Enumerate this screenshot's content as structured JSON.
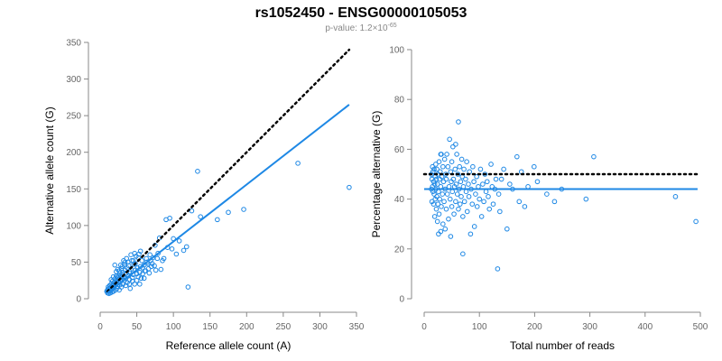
{
  "header": {
    "title": "rs1052450 - ENSG00000105053",
    "pvalue_prefix": "p-value: 1.2×10",
    "pvalue_exponent": "-65"
  },
  "colors": {
    "points": "#1e88e5",
    "fit_line": "#1e88e5",
    "reference_line": "#000000",
    "axis": "#888888",
    "tick_text": "#666666"
  },
  "chart_data": [
    {
      "type": "scatter",
      "title": "",
      "xlabel": "Reference allele count (A)",
      "ylabel": "Alternative allele count (G)",
      "xlim": [
        0,
        350
      ],
      "ylim": [
        0,
        350
      ],
      "xticks": [
        0,
        50,
        100,
        150,
        200,
        250,
        300,
        350
      ],
      "yticks": [
        0,
        50,
        100,
        150,
        200,
        250,
        300,
        350
      ],
      "grid": false,
      "reference_line": {
        "style": "dotted",
        "x": [
          10,
          340
        ],
        "y": [
          10,
          340
        ]
      },
      "fit_line": {
        "style": "solid",
        "x": [
          10,
          340
        ],
        "y": [
          8,
          265
        ]
      },
      "points": [
        [
          340,
          152
        ],
        [
          270,
          185
        ],
        [
          196,
          122
        ],
        [
          175,
          118
        ],
        [
          160,
          108
        ],
        [
          137,
          112
        ],
        [
          133,
          174
        ],
        [
          125,
          120
        ],
        [
          120,
          16
        ],
        [
          118,
          71
        ],
        [
          114,
          66
        ],
        [
          108,
          79
        ],
        [
          104,
          61
        ],
        [
          95,
          110
        ],
        [
          90,
          108
        ],
        [
          85,
          52
        ],
        [
          81,
          83
        ],
        [
          78,
          55
        ],
        [
          75,
          73
        ],
        [
          72,
          56
        ],
        [
          70,
          44
        ],
        [
          68,
          60
        ],
        [
          66,
          41
        ],
        [
          64,
          50
        ],
        [
          62,
          38
        ],
        [
          60,
          46
        ],
        [
          58,
          34
        ],
        [
          57,
          52
        ],
        [
          56,
          28
        ],
        [
          55,
          44
        ],
        [
          54,
          36
        ],
        [
          53,
          61
        ],
        [
          52,
          30
        ],
        [
          51,
          42
        ],
        [
          50,
          25
        ],
        [
          49,
          58
        ],
        [
          48,
          39
        ],
        [
          47,
          20
        ],
        [
          46,
          47
        ],
        [
          45,
          33
        ],
        [
          44,
          29
        ],
        [
          43,
          52
        ],
        [
          42,
          40
        ],
        [
          41,
          14
        ],
        [
          40,
          37
        ],
        [
          40,
          26
        ],
        [
          39,
          45
        ],
        [
          38,
          31
        ],
        [
          37,
          22
        ],
        [
          37,
          42
        ],
        [
          36,
          35
        ],
        [
          35,
          28
        ],
        [
          35,
          18
        ],
        [
          34,
          39
        ],
        [
          33,
          25
        ],
        [
          33,
          47
        ],
        [
          32,
          30
        ],
        [
          31,
          20
        ],
        [
          31,
          36
        ],
        [
          30,
          26
        ],
        [
          30,
          33
        ],
        [
          29,
          16
        ],
        [
          29,
          41
        ],
        [
          28,
          24
        ],
        [
          28,
          30
        ],
        [
          27,
          19
        ],
        [
          27,
          35
        ],
        [
          26,
          27
        ],
        [
          26,
          12
        ],
        [
          25,
          32
        ],
        [
          25,
          22
        ],
        [
          24,
          17
        ],
        [
          24,
          29
        ],
        [
          23,
          25
        ],
        [
          23,
          14
        ],
        [
          22,
          20
        ],
        [
          22,
          31
        ],
        [
          21,
          23
        ],
        [
          21,
          12
        ],
        [
          20,
          18
        ],
        [
          20,
          27
        ],
        [
          19,
          15
        ],
        [
          19,
          22
        ],
        [
          18,
          19
        ],
        [
          18,
          10
        ],
        [
          17,
          24
        ],
        [
          17,
          14
        ],
        [
          16,
          17
        ],
        [
          16,
          9
        ],
        [
          15,
          20
        ],
        [
          15,
          12
        ],
        [
          14,
          15
        ],
        [
          14,
          8
        ],
        [
          13,
          18
        ],
        [
          13,
          11
        ],
        [
          12,
          14
        ],
        [
          12,
          7
        ],
        [
          11,
          10
        ],
        [
          11,
          16
        ],
        [
          10,
          12
        ],
        [
          10,
          8
        ],
        [
          9,
          10
        ],
        [
          20,
          46
        ],
        [
          24,
          40
        ],
        [
          26,
          38
        ],
        [
          30,
          44
        ],
        [
          34,
          50
        ],
        [
          36,
          55
        ],
        [
          42,
          60
        ],
        [
          45,
          52
        ],
        [
          48,
          48
        ],
        [
          52,
          56
        ],
        [
          58,
          42
        ],
        [
          61,
          38
        ],
        [
          63,
          55
        ],
        [
          65,
          48
        ],
        [
          67,
          35
        ],
        [
          69,
          52
        ],
        [
          71,
          48
        ],
        [
          74,
          45
        ],
        [
          76,
          39
        ],
        [
          79,
          62
        ],
        [
          83,
          40
        ],
        [
          87,
          55
        ],
        [
          92,
          70
        ],
        [
          98,
          68
        ],
        [
          100,
          82
        ],
        [
          55,
          65
        ],
        [
          47,
          62
        ],
        [
          38,
          50
        ],
        [
          32,
          52
        ],
        [
          28,
          46
        ],
        [
          22,
          37
        ],
        [
          18,
          30
        ],
        [
          15,
          26
        ],
        [
          40,
          20
        ],
        [
          44,
          24
        ],
        [
          50,
          34
        ],
        [
          54,
          20
        ],
        [
          60,
          28
        ]
      ]
    },
    {
      "type": "scatter",
      "title": "",
      "xlabel": "Total number of reads",
      "ylabel": "Percentage alternative (G)",
      "xlim": [
        0,
        500
      ],
      "ylim": [
        0,
        100
      ],
      "xticks": [
        0,
        100,
        200,
        300,
        400,
        500
      ],
      "yticks": [
        0,
        20,
        40,
        60,
        80,
        100
      ],
      "grid": false,
      "reference_line": {
        "style": "dotted",
        "x": [
          0,
          495
        ],
        "y": [
          50,
          50
        ]
      },
      "fit_line": {
        "style": "solid",
        "x": [
          0,
          495
        ],
        "y": [
          44,
          44
        ]
      },
      "points": [
        [
          492,
          31
        ],
        [
          455,
          41
        ],
        [
          307,
          57
        ],
        [
          293,
          40
        ],
        [
          249,
          44
        ],
        [
          236,
          39
        ],
        [
          222,
          42
        ],
        [
          205,
          47
        ],
        [
          199,
          53
        ],
        [
          188,
          45
        ],
        [
          182,
          37
        ],
        [
          176,
          51
        ],
        [
          172,
          39
        ],
        [
          168,
          57
        ],
        [
          160,
          44
        ],
        [
          155,
          46
        ],
        [
          150,
          28
        ],
        [
          144,
          52
        ],
        [
          140,
          48
        ],
        [
          137,
          35
        ],
        [
          135,
          42
        ],
        [
          133,
          12
        ],
        [
          130,
          48
        ],
        [
          128,
          44
        ],
        [
          125,
          38
        ],
        [
          123,
          45
        ],
        [
          121,
          54
        ],
        [
          118,
          36
        ],
        [
          116,
          41
        ],
        [
          114,
          47
        ],
        [
          112,
          43
        ],
        [
          110,
          50
        ],
        [
          108,
          39
        ],
        [
          106,
          46
        ],
        [
          104,
          33
        ],
        [
          102,
          52
        ],
        [
          100,
          40
        ],
        [
          98,
          45
        ],
        [
          96,
          37
        ],
        [
          95,
          49
        ],
        [
          93,
          42
        ],
        [
          91,
          29
        ],
        [
          90,
          47
        ],
        [
          88,
          53
        ],
        [
          87,
          38
        ],
        [
          85,
          44
        ],
        [
          84,
          26
        ],
        [
          82,
          51
        ],
        [
          81,
          41
        ],
        [
          80,
          46
        ],
        [
          78,
          35
        ],
        [
          77,
          55
        ],
        [
          76,
          43
        ],
        [
          75,
          48
        ],
        [
          73,
          39
        ],
        [
          72,
          52
        ],
        [
          71,
          45
        ],
        [
          70,
          33
        ],
        [
          69,
          49
        ],
        [
          68,
          56
        ],
        [
          67,
          41
        ],
        [
          66,
          47
        ],
        [
          65,
          38
        ],
        [
          64,
          53
        ],
        [
          63,
          44
        ],
        [
          62,
          71
        ],
        [
          62,
          36
        ],
        [
          61,
          50
        ],
        [
          60,
          42
        ],
        [
          59,
          58
        ],
        [
          58,
          46
        ],
        [
          57,
          39
        ],
        [
          56,
          52
        ],
        [
          55,
          45
        ],
        [
          54,
          34
        ],
        [
          53,
          48
        ],
        [
          52,
          61
        ],
        [
          51,
          43
        ],
        [
          50,
          55
        ],
        [
          50,
          37
        ],
        [
          49,
          47
        ],
        [
          48,
          51
        ],
        [
          47,
          40
        ],
        [
          46,
          64
        ],
        [
          45,
          45
        ],
        [
          44,
          32
        ],
        [
          43,
          53
        ],
        [
          42,
          42
        ],
        [
          41,
          58
        ],
        [
          40,
          48
        ],
        [
          40,
          36
        ],
        [
          39,
          50
        ],
        [
          38,
          44
        ],
        [
          37,
          56
        ],
        [
          36,
          39
        ],
        [
          35,
          47
        ],
        [
          34,
          30
        ],
        [
          34,
          53
        ],
        [
          33,
          42
        ],
        [
          32,
          49
        ],
        [
          31,
          37
        ],
        [
          31,
          58
        ],
        [
          30,
          45
        ],
        [
          30,
          27
        ],
        [
          29,
          51
        ],
        [
          28,
          40
        ],
        [
          28,
          48
        ],
        [
          27,
          34
        ],
        [
          27,
          55
        ],
        [
          26,
          43
        ],
        [
          26,
          26
        ],
        [
          25,
          50
        ],
        [
          25,
          38
        ],
        [
          24,
          46
        ],
        [
          24,
          31
        ],
        [
          23,
          52
        ],
        [
          23,
          41
        ],
        [
          22,
          48
        ],
        [
          22,
          36
        ],
        [
          21,
          44
        ],
        [
          21,
          54
        ],
        [
          20,
          40
        ],
        [
          20,
          49
        ],
        [
          19,
          33
        ],
        [
          19,
          46
        ],
        [
          18,
          52
        ],
        [
          18,
          42
        ],
        [
          17,
          38
        ],
        [
          17,
          47
        ],
        [
          16,
          51
        ],
        [
          16,
          43
        ],
        [
          15,
          45
        ],
        [
          15,
          53
        ],
        [
          14,
          39
        ],
        [
          14,
          48
        ],
        [
          13,
          44
        ],
        [
          13,
          50
        ],
        [
          70,
          18
        ],
        [
          57,
          62
        ],
        [
          48,
          25
        ],
        [
          38,
          28
        ],
        [
          30,
          58
        ]
      ]
    }
  ]
}
